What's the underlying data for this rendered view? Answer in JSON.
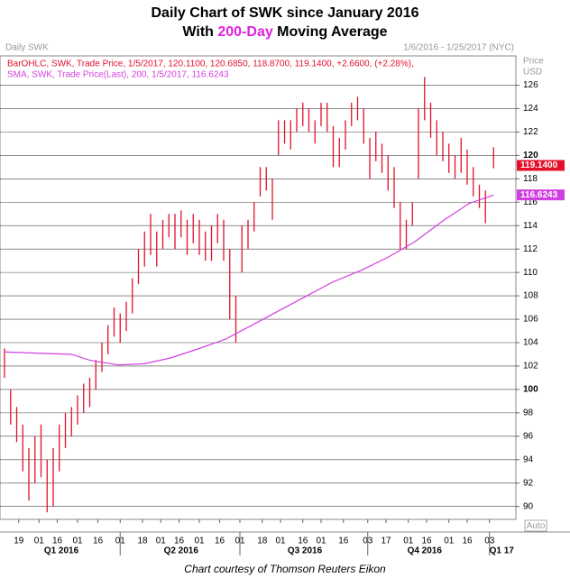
{
  "chart_data": {
    "type": "ohlc",
    "title": "Daily Chart of SWK since January 2016",
    "subtitle_parts": [
      "With ",
      "200-Day",
      " Moving Average"
    ],
    "chart_name": "Daily SWK",
    "date_range": "1/6/2016 - 1/25/2017 (NYC)",
    "y_axis_label": "Price",
    "y_axis_unit": "USD",
    "auto_label": "Auto",
    "footer": "Chart courtesy of Thomson Reuters Eikon",
    "ylim": [
      88.9,
      128.5
    ],
    "yticks": [
      90,
      92,
      94,
      96,
      98,
      100,
      102,
      104,
      106,
      108,
      110,
      112,
      114,
      116,
      118,
      120,
      122,
      124,
      126
    ],
    "bold_yticks": [
      100,
      120
    ],
    "xlim": [
      0,
      252
    ],
    "xticks": [
      {
        "value": 7,
        "label": "19"
      },
      {
        "value": 17,
        "label": "01"
      },
      {
        "value": 26,
        "label": "16"
      },
      {
        "value": 36,
        "label": "01"
      },
      {
        "value": 46,
        "label": "16"
      },
      {
        "value": 57,
        "label": "01"
      },
      {
        "value": 68,
        "label": "18"
      },
      {
        "value": 77,
        "label": "01"
      },
      {
        "value": 86,
        "label": "16"
      },
      {
        "value": 96,
        "label": "01"
      },
      {
        "value": 106,
        "label": "16"
      },
      {
        "value": 116,
        "label": "01"
      },
      {
        "value": 127,
        "label": "18"
      },
      {
        "value": 136,
        "label": "01"
      },
      {
        "value": 147,
        "label": "16"
      },
      {
        "value": 156,
        "label": "01"
      },
      {
        "value": 167,
        "label": "16"
      },
      {
        "value": 179,
        "label": "03"
      },
      {
        "value": 188,
        "label": "17"
      },
      {
        "value": 199,
        "label": "01"
      },
      {
        "value": 208,
        "label": "16"
      },
      {
        "value": 219,
        "label": "01"
      },
      {
        "value": 228,
        "label": "16"
      },
      {
        "value": 239,
        "label": "03"
      }
    ],
    "quarter_breaks": [
      57,
      116,
      179,
      239
    ],
    "quarters": [
      {
        "value": 28,
        "label": "Q1 2016"
      },
      {
        "value": 87,
        "label": "Q2 2016"
      },
      {
        "value": 148,
        "label": "Q3 2016"
      },
      {
        "value": 207,
        "label": "Q4 2016"
      },
      {
        "value": 245,
        "label": "Q1 17"
      }
    ],
    "grid": true,
    "series": [
      {
        "name": "BarOHLC, SWK, Trade Price, 1/5/2017, 120.1100, 120.6850, 118.8700, 119.1400, +2.6600, (+2.28%),",
        "color": "#e3102b",
        "x": [
          0,
          3,
          6,
          9,
          12,
          15,
          18,
          21,
          24,
          27,
          30,
          33,
          36,
          39,
          42,
          45,
          48,
          51,
          54,
          57,
          60,
          63,
          66,
          69,
          72,
          75,
          78,
          81,
          84,
          87,
          90,
          93,
          96,
          99,
          102,
          105,
          108,
          111,
          114,
          117,
          120,
          123,
          126,
          129,
          132,
          135,
          138,
          141,
          144,
          147,
          150,
          153,
          156,
          159,
          162,
          165,
          168,
          171,
          174,
          177,
          180,
          183,
          186,
          189,
          192,
          195,
          198,
          201,
          204,
          207,
          210,
          213,
          216,
          219,
          222,
          225,
          228,
          231,
          234,
          237,
          241
        ],
        "high": [
          103.5,
          100,
          98.5,
          97,
          95,
          96,
          97,
          94,
          95,
          97,
          98,
          98.5,
          99.5,
          100.5,
          101,
          102.5,
          104,
          105.5,
          107,
          106.5,
          107.5,
          109.5,
          112,
          113.5,
          115,
          113.5,
          114.5,
          115,
          115,
          115.3,
          114.5,
          115,
          114.5,
          113.5,
          114,
          115,
          114.5,
          112,
          108,
          114,
          114.5,
          116,
          119,
          119,
          118,
          123,
          123,
          123,
          124,
          124.5,
          124,
          123,
          124.5,
          124.5,
          122.5,
          121.5,
          123,
          124.5,
          125,
          124,
          121.5,
          122,
          121,
          120,
          119,
          116,
          114.5,
          116,
          124,
          126.7,
          124.5,
          123,
          122,
          121,
          120,
          121.5,
          120.5,
          119,
          117.5,
          117,
          120.7
        ],
        "low": [
          101,
          97,
          95.5,
          93,
          90.5,
          92,
          92.5,
          89.5,
          90,
          93,
          95,
          96,
          97,
          98,
          98.5,
          100,
          101.5,
          103,
          104.5,
          104,
          105,
          106.5,
          109,
          110.5,
          111.5,
          110.5,
          112,
          113,
          112,
          113,
          111.5,
          112.5,
          111.5,
          111,
          111,
          112.5,
          111,
          106,
          104,
          110,
          112,
          113.5,
          116.5,
          117,
          114.5,
          120,
          121,
          120.5,
          122,
          122.5,
          122,
          121,
          122.5,
          122,
          119,
          119,
          120.5,
          122.5,
          123,
          121,
          118,
          119.5,
          118.5,
          117,
          115.5,
          112,
          112,
          114,
          118,
          123,
          121.5,
          120,
          119.5,
          118.5,
          118,
          118.5,
          117.5,
          116.5,
          115.5,
          114.2,
          118.9
        ]
      },
      {
        "name": "SMA, SWK, Trade Price(Last), 200, 1/5/2017, 116.6243",
        "color": "#d23fe0",
        "x": [
          0,
          33,
          42,
          56,
          69,
          82,
          96,
          109,
          122,
          136,
          149,
          162,
          176,
          189,
          202,
          216,
          229,
          241
        ],
        "values": [
          103.2,
          103,
          102.5,
          102.1,
          102.2,
          102.7,
          103.5,
          104.3,
          105.5,
          106.8,
          108,
          109.2,
          110.2,
          111.3,
          112.6,
          114.4,
          115.9,
          116.6
        ]
      }
    ],
    "last_price": {
      "value": 119.14,
      "label": "119.1400"
    },
    "sma_last": {
      "value": 116.6243,
      "label": "116.6243"
    }
  }
}
